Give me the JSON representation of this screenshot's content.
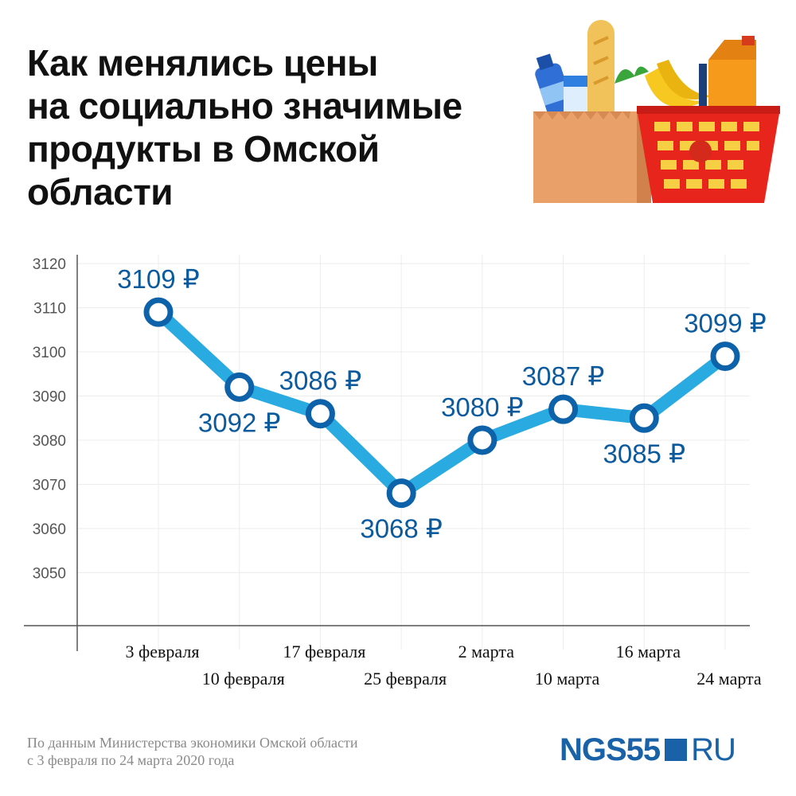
{
  "title_lines": [
    "Как менялись цены",
    "на социально значимые",
    "продукты в Омской",
    "области"
  ],
  "source_lines": [
    "По данным Министерства экономики Омской области",
    "с 3 февраля по 24 марта 2020 года"
  ],
  "logo": {
    "main": "NGS55",
    "suffix": "RU"
  },
  "chart_data": {
    "type": "line",
    "x": [
      "3 февраля",
      "10 февраля",
      "17 февраля",
      "25 февраля",
      "2 марта",
      "10 марта",
      "16 марта",
      "24 марта"
    ],
    "values": [
      3109,
      3092,
      3086,
      3068,
      3080,
      3087,
      3085,
      3099
    ],
    "data_labels": [
      "3109 ₽",
      "3092 ₽",
      "3086 ₽",
      "3068 ₽",
      "3080 ₽",
      "3087 ₽",
      "3085 ₽",
      "3099 ₽"
    ],
    "y_ticks": [
      3050,
      3060,
      3070,
      3080,
      3090,
      3100,
      3110,
      3120
    ],
    "ylim": [
      3038,
      3122
    ],
    "grid": true,
    "colors": {
      "line": "#29aae1",
      "marker_stroke": "#0d62aa",
      "label": "#0b5a9e"
    }
  },
  "icons": {
    "illustration": "grocery-basket-icon"
  }
}
